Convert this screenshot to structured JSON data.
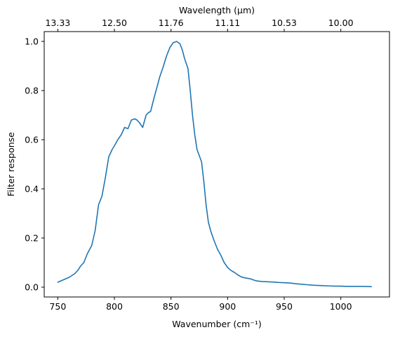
{
  "chart_data": {
    "type": "line",
    "xlabel": "Wavenumber (cm⁻¹)",
    "ylabel": "Filter response",
    "top_xlabel": "Wavelength (μm)",
    "xlim": [
      738,
      1043
    ],
    "ylim": [
      -0.04,
      1.04
    ],
    "x_ticks": [
      750,
      800,
      850,
      900,
      950,
      1000
    ],
    "y_ticks": [
      0.0,
      0.2,
      0.4,
      0.6,
      0.8,
      1.0
    ],
    "y_tick_labels": [
      "0.0",
      "0.2",
      "0.4",
      "0.6",
      "0.8",
      "1.0"
    ],
    "top_ticks": [
      {
        "label": "13.33",
        "wavenumber": 750
      },
      {
        "label": "12.50",
        "wavenumber": 800
      },
      {
        "label": "11.76",
        "wavenumber": 850
      },
      {
        "label": "11.11",
        "wavenumber": 900
      },
      {
        "label": "10.53",
        "wavenumber": 950
      },
      {
        "label": "10.00",
        "wavenumber": 1000
      }
    ],
    "grid": false,
    "legend": "none",
    "series": [
      {
        "color": "#1f77b4",
        "x": [
          750,
          755,
          760,
          765,
          768,
          770,
          773,
          776,
          780,
          783,
          786,
          789,
          792,
          795,
          798,
          800,
          803,
          806,
          809,
          812,
          815,
          818,
          820,
          822,
          825,
          828,
          830,
          832,
          835,
          838,
          840,
          843,
          846,
          849,
          852,
          855,
          858,
          860,
          862,
          865,
          867,
          869,
          871,
          873,
          875,
          877,
          879,
          881,
          883,
          885,
          888,
          891,
          894,
          897,
          900,
          903,
          906,
          909,
          912,
          915,
          920,
          925,
          930,
          935,
          940,
          945,
          950,
          955,
          960,
          965,
          970,
          975,
          980,
          985,
          990,
          995,
          1000,
          1005,
          1010,
          1015,
          1020,
          1027
        ],
        "y": [
          0.02,
          0.03,
          0.04,
          0.055,
          0.07,
          0.085,
          0.1,
          0.135,
          0.17,
          0.23,
          0.335,
          0.37,
          0.445,
          0.53,
          0.56,
          0.575,
          0.6,
          0.62,
          0.65,
          0.645,
          0.68,
          0.685,
          0.68,
          0.67,
          0.65,
          0.7,
          0.71,
          0.715,
          0.77,
          0.82,
          0.855,
          0.895,
          0.94,
          0.975,
          0.995,
          1.0,
          0.99,
          0.965,
          0.93,
          0.89,
          0.8,
          0.7,
          0.62,
          0.56,
          0.535,
          0.51,
          0.43,
          0.335,
          0.265,
          0.23,
          0.19,
          0.155,
          0.13,
          0.1,
          0.08,
          0.068,
          0.06,
          0.05,
          0.042,
          0.038,
          0.034,
          0.026,
          0.023,
          0.022,
          0.021,
          0.019,
          0.018,
          0.017,
          0.014,
          0.012,
          0.01,
          0.008,
          0.007,
          0.006,
          0.005,
          0.004,
          0.004,
          0.003,
          0.003,
          0.003,
          0.003,
          0.002
        ]
      }
    ]
  }
}
